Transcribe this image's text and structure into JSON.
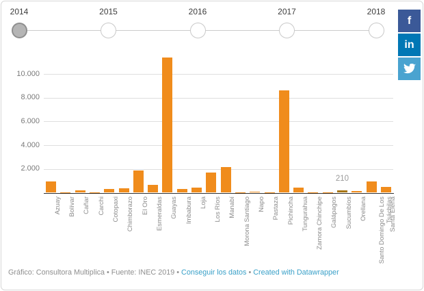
{
  "timeline": {
    "years": [
      "2014",
      "2015",
      "2016",
      "2017",
      "2018"
    ],
    "selected": "2014"
  },
  "social": {
    "facebook": {
      "label": "f",
      "color": "#3b5998"
    },
    "linkedin": {
      "label": "in",
      "color": "#0077b5"
    },
    "twitter": {
      "label": "twitter-bird",
      "color": "#4aa3d0"
    }
  },
  "chart_data": {
    "type": "bar",
    "title": "",
    "xlabel": "",
    "ylabel": "",
    "categories": [
      "Azuay",
      "Bolívar",
      "Cañar",
      "Carchi",
      "Cotopaxi",
      "Chimborazo",
      "El Oro",
      "Esmeraldas",
      "Guayas",
      "Imbabura",
      "Loja",
      "Los Ríos",
      "Manabí",
      "Morona Santiago",
      "Napo",
      "Pastaza",
      "Pichincha",
      "Tungurahua",
      "Zamora Chinchipe",
      "Galápagos",
      "Sucumbíos",
      "Orellana",
      "Santo Domingo De Los Tsáchilas",
      "Santa Elena"
    ],
    "values": [
      950,
      20,
      200,
      20,
      300,
      350,
      1900,
      650,
      11400,
      300,
      450,
      1700,
      2150,
      20,
      100,
      10,
      8600,
      420,
      10,
      20,
      210,
      140,
      950,
      500
    ],
    "bar_color": "#f08c1c",
    "highlight": {
      "category": "Sucumbíos",
      "index": 20,
      "value": 210,
      "label": "210",
      "color": "#a87614"
    },
    "yticks": [
      {
        "value": 2000,
        "label": "2.000"
      },
      {
        "value": 4000,
        "label": "4.000"
      },
      {
        "value": 6000,
        "label": "6.000"
      },
      {
        "value": 8000,
        "label": "8.000"
      },
      {
        "value": 10000,
        "label": "10.000"
      }
    ],
    "ylim": [
      0,
      11600
    ],
    "grid": true,
    "legend": "none"
  },
  "footer": {
    "credit": "Gráfico: Consultora Multiplica",
    "source": "Fuente: INEC 2019",
    "sep": "•",
    "get_data_link": "Conseguir los datos",
    "created_link": "Created with Datawrapper"
  }
}
